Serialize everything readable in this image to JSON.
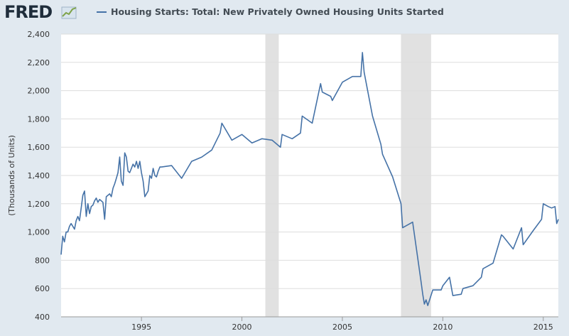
{
  "header": {
    "logo_text": "FRED",
    "logo_icon": "line-chart-icon",
    "legend_label": "Housing Starts: Total: New Privately Owned Housing Units Started"
  },
  "colors": {
    "background": "#e1e9f0",
    "plot_background": "#ffffff",
    "series": "#4572a7",
    "recession": "#e1e1e1",
    "grid": "#dddddd"
  },
  "chart_data": {
    "type": "line",
    "title": "",
    "ylabel": "(Thousands of Units)",
    "xlabel": "",
    "xlim": [
      1991.0,
      2015.75
    ],
    "ylim": [
      400,
      2400
    ],
    "x_ticks": [
      1995,
      2000,
      2005,
      2010,
      2015
    ],
    "x_tick_labels": [
      "1995",
      "2000",
      "2005",
      "2010",
      "2015"
    ],
    "y_ticks": [
      400,
      600,
      800,
      1000,
      1200,
      1400,
      1600,
      1800,
      2000,
      2200,
      2400
    ],
    "y_tick_labels": [
      "400",
      "600",
      "800",
      "1,000",
      "1,200",
      "1,400",
      "1,600",
      "1,800",
      "2,000",
      "2,200",
      "2,400"
    ],
    "grid": true,
    "recessions": [
      {
        "start": "2001-03",
        "end": "2001-11"
      },
      {
        "start": "2007-12",
        "end": "2009-06"
      }
    ],
    "series": [
      {
        "name": "Housing Starts: Total: New Privately Owned Housing Units Started",
        "x": [
          1991.0,
          1991.083,
          1991.167,
          1991.25,
          1991.333,
          1991.417,
          1991.5,
          1991.583,
          1991.667,
          1991.75,
          1991.833,
          1991.917,
          1992.0,
          1992.083,
          1992.167,
          1992.25,
          1992.333,
          1992.417,
          1992.5,
          1992.583,
          1992.667,
          1992.75,
          1992.833,
          1992.917,
          1993.0,
          1993.083,
          1993.167,
          1993.25,
          1993.333,
          1993.417,
          1993.5,
          1993.583,
          1993.667,
          1993.75,
          1993.833,
          1993.917,
          1994.0,
          1994.083,
          1994.167,
          1994.25,
          1994.333,
          1994.417,
          1994.5,
          1994.583,
          1994.667,
          1994.75,
          1994.833,
          1994.917,
          1995.0,
          1995.083,
          1995.167,
          1995.25,
          1995.333,
          1995.417,
          1995.5,
          1995.583,
          1995.667,
          1995.75,
          1995.833,
          1995.917,
          1996.0,
          1996.5,
          1997.0,
          1997.5,
          1998.0,
          1998.5,
          1998.917,
          1999.0,
          1999.5,
          2000.0,
          2000.5,
          2001.0,
          2001.5,
          2001.917,
          2002.0,
          2002.5,
          2002.917,
          2003.0,
          2003.5,
          2003.917,
          2004.0,
          2004.417,
          2004.5,
          2005.0,
          2005.5,
          2005.917,
          2006.0,
          2006.083,
          2006.5,
          2006.917,
          2007.0,
          2007.5,
          2007.917,
          2008.0,
          2008.5,
          2008.917,
          2009.0,
          2009.083,
          2009.167,
          2009.25,
          2009.5,
          2009.917,
          2010.0,
          2010.333,
          2010.5,
          2010.917,
          2011.0,
          2011.5,
          2011.917,
          2012.0,
          2012.5,
          2012.917,
          2013.0,
          2013.5,
          2013.917,
          2014.0,
          2014.5,
          2014.917,
          2015.0,
          2015.25,
          2015.417,
          2015.583,
          2015.667,
          2015.75
        ],
        "values": [
          840,
          970,
          930,
          1000,
          1000,
          1040,
          1060,
          1040,
          1020,
          1080,
          1110,
          1080,
          1170,
          1260,
          1290,
          1110,
          1200,
          1130,
          1180,
          1190,
          1220,
          1240,
          1210,
          1230,
          1220,
          1210,
          1090,
          1250,
          1260,
          1270,
          1250,
          1310,
          1340,
          1380,
          1420,
          1530,
          1360,
          1330,
          1560,
          1530,
          1430,
          1420,
          1450,
          1480,
          1460,
          1500,
          1450,
          1500,
          1420,
          1360,
          1250,
          1270,
          1290,
          1400,
          1380,
          1450,
          1400,
          1390,
          1430,
          1460,
          1460,
          1470,
          1380,
          1500,
          1530,
          1580,
          1700,
          1770,
          1650,
          1690,
          1630,
          1660,
          1650,
          1600,
          1690,
          1660,
          1700,
          1820,
          1770,
          2050,
          1990,
          1960,
          1930,
          2060,
          2100,
          2100,
          2270,
          2130,
          1820,
          1620,
          1550,
          1390,
          1200,
          1030,
          1070,
          650,
          560,
          490,
          520,
          480,
          590,
          590,
          620,
          680,
          550,
          560,
          600,
          620,
          680,
          740,
          780,
          980,
          970,
          880,
          1030,
          910,
          1010,
          1090,
          1200,
          1180,
          1170,
          1180,
          1060,
          1090
        ]
      }
    ]
  }
}
